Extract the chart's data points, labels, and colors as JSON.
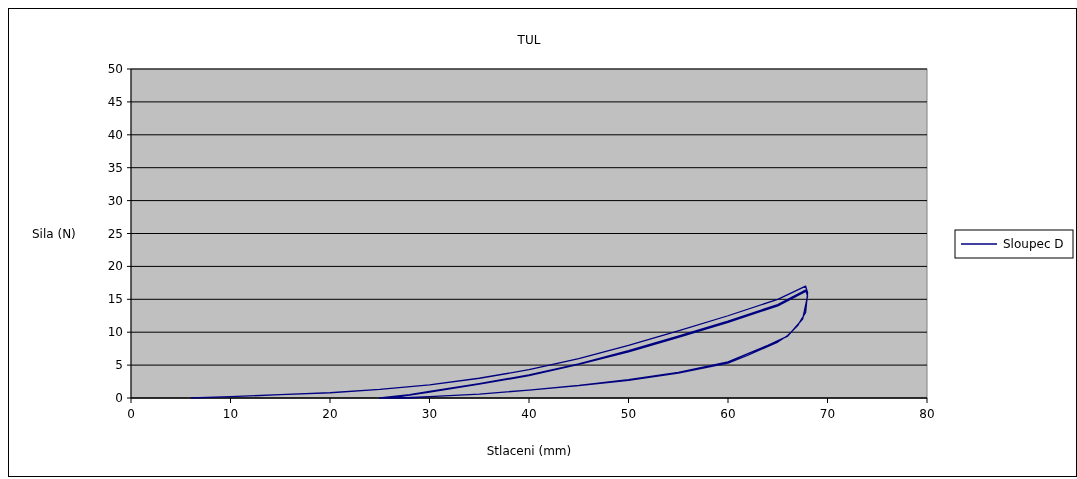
{
  "chart_data": {
    "type": "line",
    "title": "TUL",
    "xlabel": "Stlaceni (mm)",
    "ylabel": "Sila (N)",
    "xlim": [
      0,
      80
    ],
    "xticks": [
      0,
      10,
      20,
      30,
      40,
      50,
      60,
      70,
      80
    ],
    "ylim": [
      0,
      50
    ],
    "yticks": [
      0,
      5,
      10,
      15,
      20,
      25,
      30,
      35,
      40,
      45,
      50
    ],
    "grid": "y",
    "legend": "right",
    "marker": "none",
    "line_style": "solid",
    "series": [
      {
        "name": "Sloupec D",
        "color": "#000080",
        "x": [
          6,
          10,
          15,
          20,
          25,
          30,
          35,
          40,
          45,
          50,
          55,
          60,
          65,
          67.8,
          68,
          67.8,
          67,
          66,
          65,
          62,
          60,
          55,
          50,
          45,
          40,
          35,
          30,
          27,
          25,
          28,
          30,
          35,
          40,
          45,
          50,
          55,
          60,
          65,
          67.8,
          68,
          67.5,
          66,
          64,
          60,
          55,
          50,
          45,
          40,
          35,
          30,
          28,
          26,
          30,
          35,
          40,
          45,
          50,
          55,
          60,
          65,
          67.8
        ],
        "values": [
          0,
          0.2,
          0.5,
          0.8,
          1.3,
          2,
          3,
          4.3,
          6,
          8,
          10.2,
          12.5,
          15,
          17,
          16,
          13,
          11,
          9.5,
          8.5,
          6.5,
          5.3,
          3.8,
          2.7,
          1.9,
          1.2,
          0.6,
          0.2,
          0,
          0,
          0.5,
          1,
          2.2,
          3.5,
          5.2,
          7.2,
          9.4,
          11.7,
          14.2,
          16.4,
          15.5,
          12,
          9.4,
          8,
          5.5,
          3.9,
          2.8,
          1.9,
          1.2,
          0.6,
          0.2,
          0,
          0,
          0.9,
          2.1,
          3.4,
          5.1,
          7,
          9.2,
          11.5,
          14,
          16.2
        ]
      }
    ]
  }
}
